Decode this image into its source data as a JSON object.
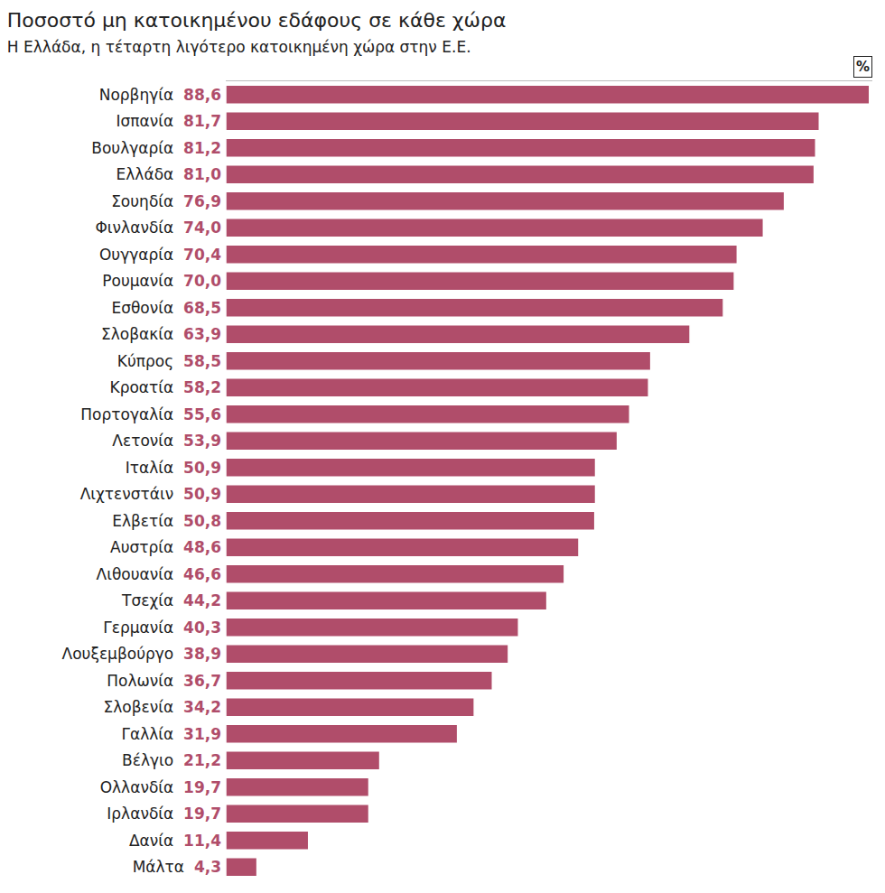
{
  "chart_data": {
    "type": "bar",
    "orientation": "horizontal",
    "title": "Ποσοστό μη κατοικημένου εδάφους σε κάθε χώρα",
    "subtitle": "Η Ελλάδα, η τέταρτη λιγότερο κατοικημένη χώρα στην Ε.Ε.",
    "xlabel": "%",
    "categories": [
      "Νορβηγία",
      "Ισπανία",
      "Βουλγαρία",
      "Ελλάδα",
      "Σουηδία",
      "Φινλανδία",
      "Ουγγαρία",
      "Ρουμανία",
      "Εσθονία",
      "Σλοβακία",
      "Κύπρος",
      "Κροατία",
      "Πορτογαλία",
      "Λετονία",
      "Ιταλία",
      "Λιχτενστάιν",
      "Ελβετία",
      "Αυστρία",
      "Λιθουανία",
      "Τσεχία",
      "Γερμανία",
      "Λουξεμβούργο",
      "Πολωνία",
      "Σλοβενία",
      "Γαλλία",
      "Βέλγιο",
      "Ολλανδία",
      "Ιρλανδία",
      "Δανία",
      "Μάλτα"
    ],
    "values": [
      88.6,
      81.7,
      81.2,
      81.0,
      76.9,
      74.0,
      70.4,
      70.0,
      68.5,
      63.9,
      58.5,
      58.2,
      55.6,
      53.9,
      50.9,
      50.9,
      50.8,
      48.6,
      46.6,
      44.2,
      40.3,
      38.9,
      36.7,
      34.2,
      31.9,
      21.2,
      19.7,
      19.7,
      11.4,
      4.3
    ],
    "value_labels": [
      "88,6",
      "81,7",
      "81,2",
      "81,0",
      "76,9",
      "74,0",
      "70,4",
      "70,0",
      "68,5",
      "63,9",
      "58,5",
      "58,2",
      "55,6",
      "53,9",
      "50,9",
      "50,9",
      "50,8",
      "48,6",
      "46,6",
      "44,2",
      "40,3",
      "38,9",
      "36,7",
      "34,2",
      "31,9",
      "21,2",
      "19,7",
      "19,7",
      "11,4",
      "4,3"
    ],
    "data_labels": true,
    "color": "#b04d6a",
    "xlim": [
      0,
      89
    ],
    "xticks": [],
    "grid": false,
    "tick_labels": "y"
  }
}
